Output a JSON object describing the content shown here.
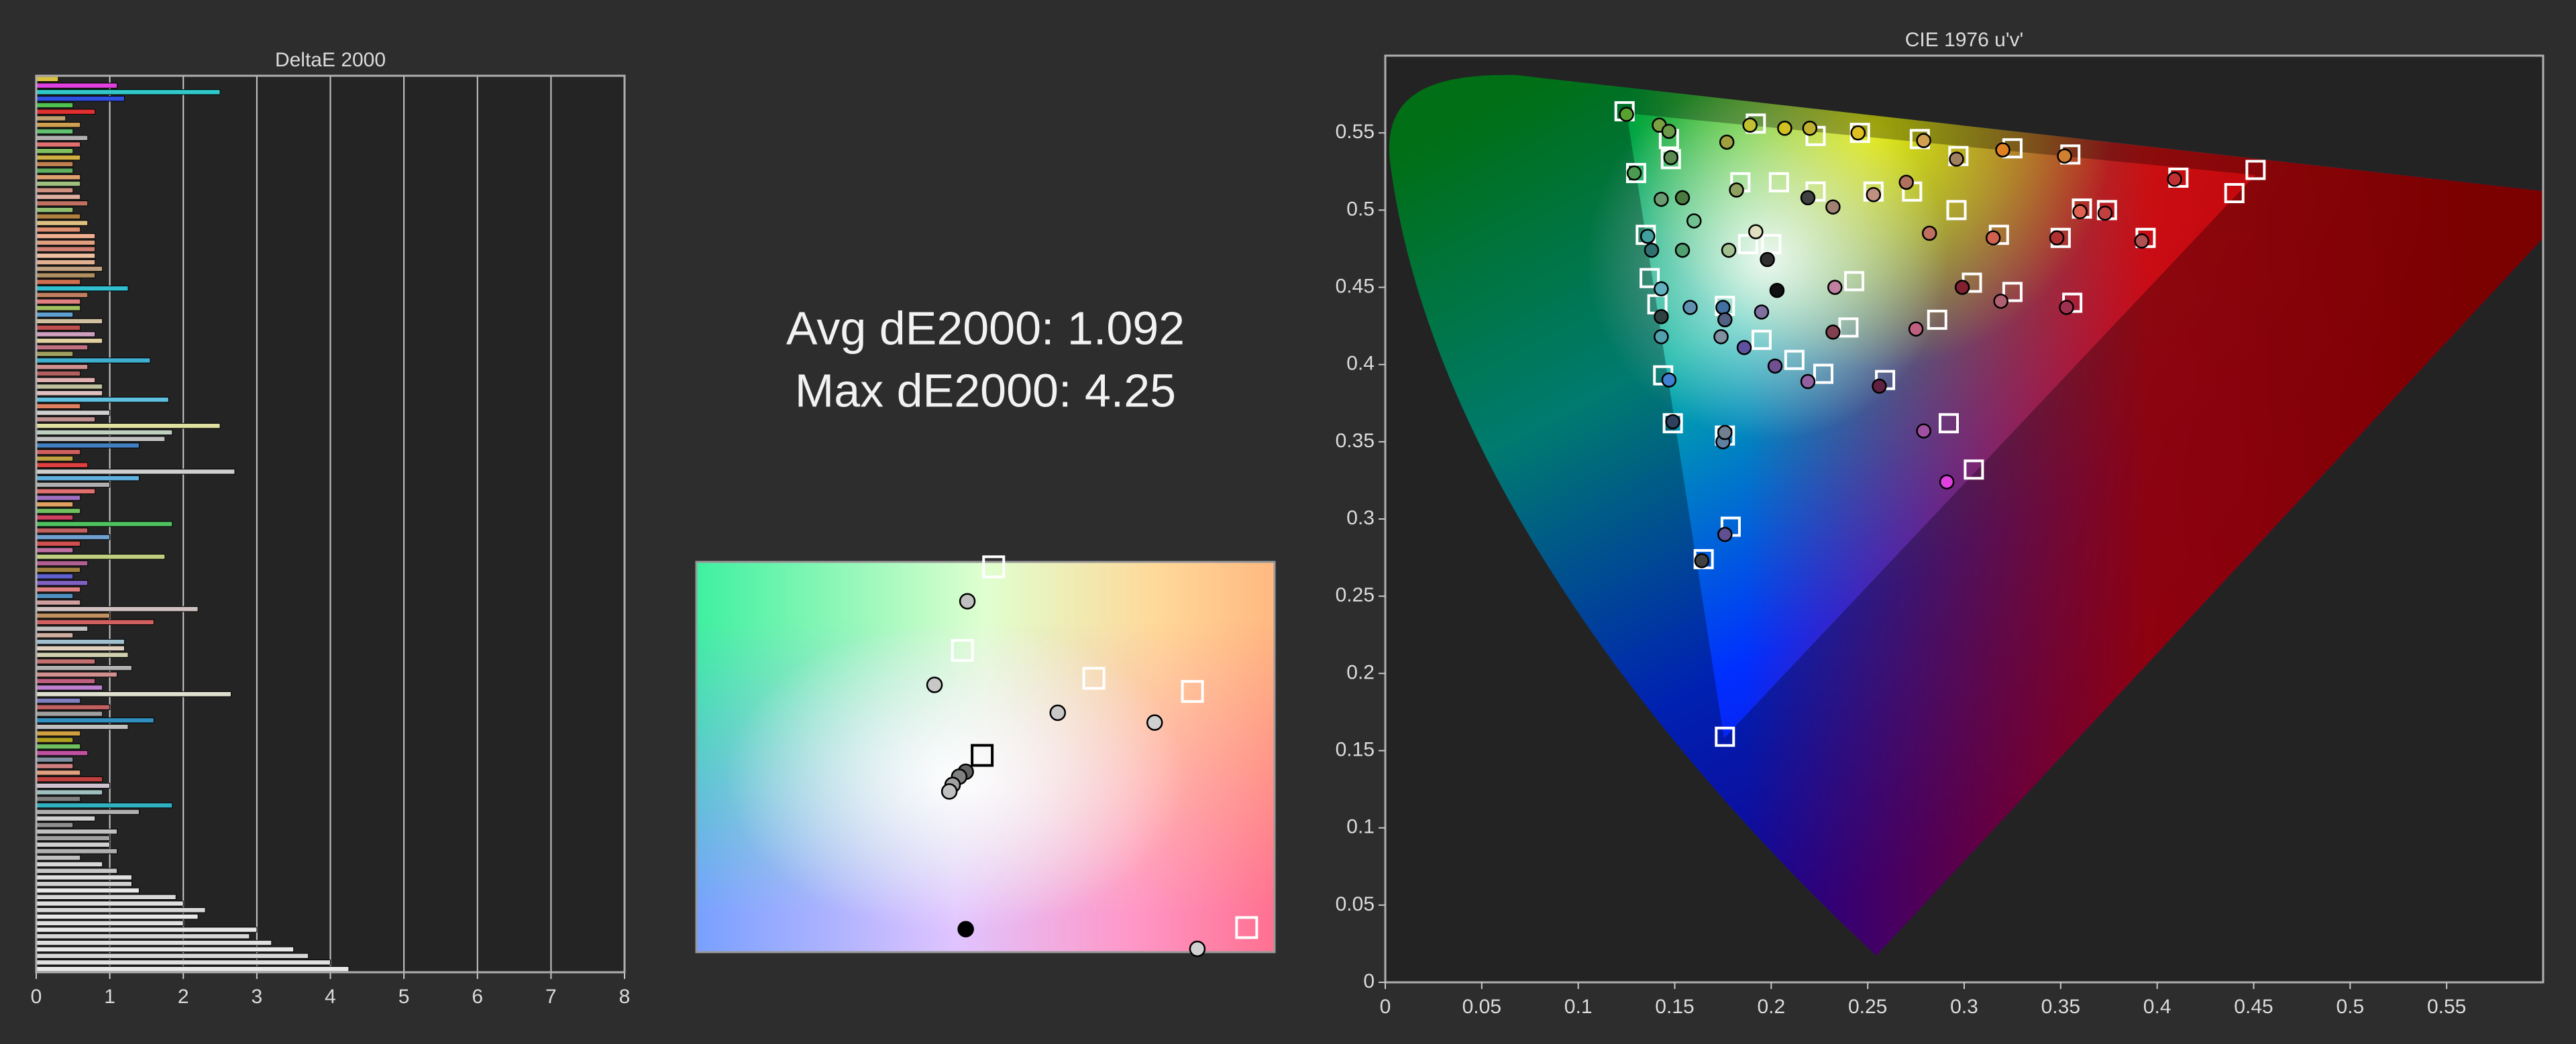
{
  "summary": [
    "Avg dE2000: 1.092",
    "Max dE2000: 4.25"
  ],
  "chart_data": [
    {
      "type": "bar",
      "orientation": "horizontal",
      "title": "DeltaE 2000",
      "values": [
        0.3,
        1.1,
        2.5,
        1.2,
        0.5,
        0.8,
        0.4,
        0.6,
        0.5,
        0.7,
        0.6,
        0.5,
        0.6,
        0.5,
        0.5,
        0.6,
        0.6,
        0.5,
        0.6,
        0.7,
        0.5,
        0.6,
        0.7,
        0.6,
        0.8,
        0.8,
        0.8,
        0.8,
        0.8,
        0.9,
        0.8,
        0.6,
        1.25,
        0.7,
        0.6,
        0.6,
        0.5,
        0.9,
        0.6,
        0.8,
        0.9,
        0.7,
        0.5,
        1.55,
        0.7,
        0.6,
        0.8,
        0.9,
        0.9,
        1.8,
        0.6,
        1.0,
        0.8,
        2.5,
        1.85,
        1.75,
        1.4,
        0.6,
        0.5,
        0.7,
        2.7,
        1.4,
        1.0,
        0.8,
        0.6,
        0.5,
        0.6,
        0.5,
        1.85,
        0.7,
        1.0,
        0.6,
        0.5,
        1.75,
        0.7,
        0.6,
        0.5,
        0.7,
        0.6,
        0.5,
        0.6,
        2.2,
        1.0,
        1.6,
        0.7,
        0.5,
        1.2,
        1.2,
        1.25,
        0.8,
        1.3,
        1.1,
        0.8,
        0.9,
        2.65,
        0.6,
        1.0,
        0.9,
        1.6,
        1.25,
        0.6,
        0.5,
        0.6,
        0.7,
        0.5,
        0.5,
        0.6,
        0.9,
        1.0,
        0.9,
        0.6,
        1.85,
        1.4,
        0.8,
        0.5,
        1.1,
        1.0,
        1.0,
        1.1,
        0.6,
        0.9,
        1.1,
        1.3,
        1.3,
        1.4,
        1.9,
        2.0,
        2.3,
        2.2,
        2.0,
        3.0,
        2.9,
        3.2,
        3.5,
        3.7,
        4.0,
        4.25
      ],
      "colors": [
        "#d8c040",
        "#e040e0",
        "#30c8c8",
        "#3050e0",
        "#50c050",
        "#e03030",
        "#c0a070",
        "#d0a050",
        "#60c070",
        "#b0b0b0",
        "#e07070",
        "#80c060",
        "#d0b040",
        "#c08050",
        "#60b060",
        "#e0a070",
        "#a0c080",
        "#d09080",
        "#e0b0a0",
        "#c07060",
        "#90c070",
        "#b08040",
        "#e0c080",
        "#e09070",
        "#f0b090",
        "#e0a080",
        "#d08070",
        "#f0c0a0",
        "#e0b090",
        "#c0a080",
        "#b09060",
        "#d07050",
        "#30c0d0",
        "#c08060",
        "#e08080",
        "#a0c060",
        "#60a0d0",
        "#d0c0a0",
        "#c05050",
        "#d0a0c0",
        "#e0d0a0",
        "#c07080",
        "#a0a060",
        "#40b0d0",
        "#d09090",
        "#b06060",
        "#e0b0b0",
        "#c0c0a0",
        "#e0c0c0",
        "#60c0e0",
        "#e08060",
        "#d0d0d0",
        "#c09090",
        "#e0e0a0",
        "#c0d0c0",
        "#c0c0c0",
        "#4080c0",
        "#d06060",
        "#c0a040",
        "#e04040",
        "#d0d0d0",
        "#60b0e0",
        "#b0b0b0",
        "#e07070",
        "#a070c0",
        "#e0a060",
        "#70c060",
        "#d04060",
        "#50c060",
        "#c06060",
        "#70a0d0",
        "#d05050",
        "#c070a0",
        "#c0d080",
        "#b06090",
        "#a08040",
        "#6060d0",
        "#8060c0",
        "#e08080",
        "#5090c0",
        "#d0a0a0",
        "#d0c0c0",
        "#c09060",
        "#d06060",
        "#c0c0c0",
        "#d0b0a0",
        "#a0c0d0",
        "#e0d0c0",
        "#d0d0b0",
        "#c07070",
        "#b0b0b0",
        "#d09090",
        "#c06080",
        "#c080d0",
        "#e0e0d0",
        "#8080c0",
        "#c06060",
        "#a0a0a0",
        "#3090c0",
        "#c0c0c0",
        "#d0a040",
        "#b0a020",
        "#70c060",
        "#c050a0",
        "#8090a0",
        "#d08080",
        "#e0a080",
        "#c04040",
        "#d0c0d0",
        "#a0c0c0",
        "#808080",
        "#30b0c0",
        "#b0b0b0",
        "#d0d0d0",
        "#909090",
        "#c0c0c0",
        "#a0a0a0",
        "#d0d0d0",
        "#b0b0b0",
        "#c0c0c0",
        "#d8d8d8",
        "#c8c8c8",
        "#e0e0e0",
        "#d0d0d0",
        "#e8e8e8",
        "#d8d8d8",
        "#e0e0e0",
        "#d8d8d8",
        "#e8e8e8",
        "#e0e0e0",
        "#e8e8e8",
        "#d8d8d8",
        "#e0e0e0",
        "#e8e8e8",
        "#d8d8d8",
        "#e0e0e0",
        "#e8e8e8"
      ],
      "xlim": [
        0,
        8
      ],
      "xticks": [
        0,
        1,
        2,
        3,
        4,
        5,
        6,
        7,
        8
      ],
      "grid": true
    },
    {
      "type": "scatter",
      "xlim": [
        0.163,
        0.2334
      ],
      "ylim": [
        0.4444,
        0.492
      ],
      "series": [
        {
          "marker": "square",
          "color": "#ffffff",
          "x": [
            0.1992,
            0.1954,
            0.2114,
            0.2234,
            0.23
          ],
          "y": [
            0.4914,
            0.4812,
            0.4778,
            0.4762,
            0.4474
          ]
        },
        {
          "marker": "square",
          "color": "#000000",
          "x": [
            0.1978
          ],
          "y": [
            0.4684
          ]
        },
        {
          "marker": "circle",
          "x": [
            0.196,
            0.192,
            0.207,
            0.2188,
            0.1958,
            0.195,
            0.1942,
            0.1938,
            0.1958,
            0.224
          ],
          "y": [
            0.4872,
            0.477,
            0.4736,
            0.4724,
            0.4664,
            0.4658,
            0.4648,
            0.464,
            0.4472,
            0.4448
          ],
          "colors": [
            "#c0c0c0",
            "#c8c8c8",
            "#c8c8c8",
            "#d0d0d0",
            "#606060",
            "#808080",
            "#a0a0a0",
            "#c0c0c0",
            "#000000",
            "#d0d0d0"
          ]
        }
      ]
    },
    {
      "type": "scatter",
      "title": "CIE 1976 u'v'",
      "xlim": [
        0,
        0.6
      ],
      "ylim": [
        0,
        0.6
      ],
      "xticks": [
        0,
        0.05,
        0.1,
        0.15,
        0.2,
        0.25,
        0.3,
        0.35,
        0.4,
        0.45,
        0.5,
        0.55
      ],
      "yticks": [
        0,
        0.05,
        0.1,
        0.15,
        0.2,
        0.25,
        0.3,
        0.35,
        0.4,
        0.45,
        0.5,
        0.55
      ],
      "series": [
        {
          "marker": "square",
          "color": "#ffffff",
          "x": [
            0.124,
            0.13,
            0.135,
            0.137,
            0.141,
            0.144,
            0.149,
            0.165,
            0.176,
            0.179,
            0.176,
            0.176,
            0.195,
            0.212,
            0.227,
            0.259,
            0.292,
            0.305,
            0.243,
            0.24,
            0.286,
            0.304,
            0.325,
            0.356,
            0.296,
            0.318,
            0.35,
            0.361,
            0.374,
            0.394,
            0.411,
            0.451,
            0.44,
            0.355,
            0.325,
            0.297,
            0.277,
            0.246,
            0.223,
            0.192,
            0.147,
            0.148,
            0.204,
            0.184,
            0.188,
            0.2,
            0.223,
            0.253,
            0.273
          ],
          "y": [
            0.564,
            0.524,
            0.484,
            0.456,
            0.439,
            0.393,
            0.362,
            0.274,
            0.159,
            0.295,
            0.354,
            0.438,
            0.416,
            0.403,
            0.394,
            0.39,
            0.362,
            0.332,
            0.454,
            0.424,
            0.429,
            0.453,
            0.447,
            0.44,
            0.5,
            0.484,
            0.482,
            0.501,
            0.5,
            0.482,
            0.521,
            0.526,
            0.511,
            0.536,
            0.54,
            0.535,
            0.546,
            0.55,
            0.548,
            0.556,
            0.546,
            0.533,
            0.518,
            0.518,
            0.478,
            0.478,
            0.512,
            0.512,
            0.512
          ]
        },
        {
          "marker": "circle",
          "x": [
            0.125,
            0.142,
            0.147,
            0.129,
            0.148,
            0.143,
            0.154,
            0.16,
            0.154,
            0.136,
            0.138,
            0.143,
            0.143,
            0.143,
            0.147,
            0.149,
            0.158,
            0.175,
            0.176,
            0.174,
            0.175,
            0.176,
            0.176,
            0.164,
            0.186,
            0.195,
            0.202,
            0.219,
            0.256,
            0.203,
            0.232,
            0.233,
            0.275,
            0.299,
            0.319,
            0.353,
            0.279,
            0.291,
            0.198,
            0.182,
            0.177,
            0.189,
            0.207,
            0.22,
            0.245,
            0.279,
            0.296,
            0.32,
            0.352,
            0.282,
            0.315,
            0.348,
            0.36,
            0.373,
            0.392,
            0.409,
            0.219,
            0.232,
            0.253,
            0.27,
            0.192,
            0.178
          ],
          "y": [
            0.562,
            0.555,
            0.551,
            0.524,
            0.534,
            0.507,
            0.508,
            0.493,
            0.474,
            0.483,
            0.474,
            0.449,
            0.431,
            0.418,
            0.39,
            0.363,
            0.437,
            0.437,
            0.429,
            0.418,
            0.35,
            0.356,
            0.29,
            0.273,
            0.411,
            0.434,
            0.399,
            0.389,
            0.386,
            0.448,
            0.421,
            0.45,
            0.423,
            0.45,
            0.441,
            0.437,
            0.357,
            0.324,
            0.468,
            0.513,
            0.544,
            0.555,
            0.553,
            0.553,
            0.55,
            0.545,
            0.533,
            0.539,
            0.535,
            0.485,
            0.482,
            0.482,
            0.499,
            0.498,
            0.48,
            0.52,
            0.508,
            0.502,
            0.51,
            0.518,
            0.486,
            0.474
          ],
          "colors": [
            "#58a030",
            "#7aa040",
            "#6a9a48",
            "#4a9a50",
            "#5a8a50",
            "#6a9a70",
            "#4a7a40",
            "#70c090",
            "#50a070",
            "#40a0a0",
            "#307070",
            "#60b0c0",
            "#304040",
            "#50a0b0",
            "#4080d0",
            "#304060",
            "#6090b0",
            "#4070a0",
            "#506080",
            "#8090a0",
            "#6080a0",
            "#708090",
            "#605090",
            "#404040",
            "#6050a0",
            "#8070a0",
            "#705090",
            "#9060a0",
            "#602040",
            "#101010",
            "#804050",
            "#c080a0",
            "#c06080",
            "#802030",
            "#b06070",
            "#a03050",
            "#a050a0",
            "#e040e0",
            "#303030",
            "#90a060",
            "#a0a040",
            "#c0c030",
            "#d0c020",
            "#c0b030",
            "#e0c020",
            "#d0a050",
            "#a08060",
            "#e08020",
            "#d08030",
            "#c07060",
            "#d06050",
            "#b03030",
            "#e06050",
            "#c04040",
            "#b05050",
            "#c03030",
            "#404040",
            "#a08070",
            "#c09080",
            "#b07060",
            "#e0e0c0",
            "#a0c090"
          ]
        }
      ]
    }
  ]
}
